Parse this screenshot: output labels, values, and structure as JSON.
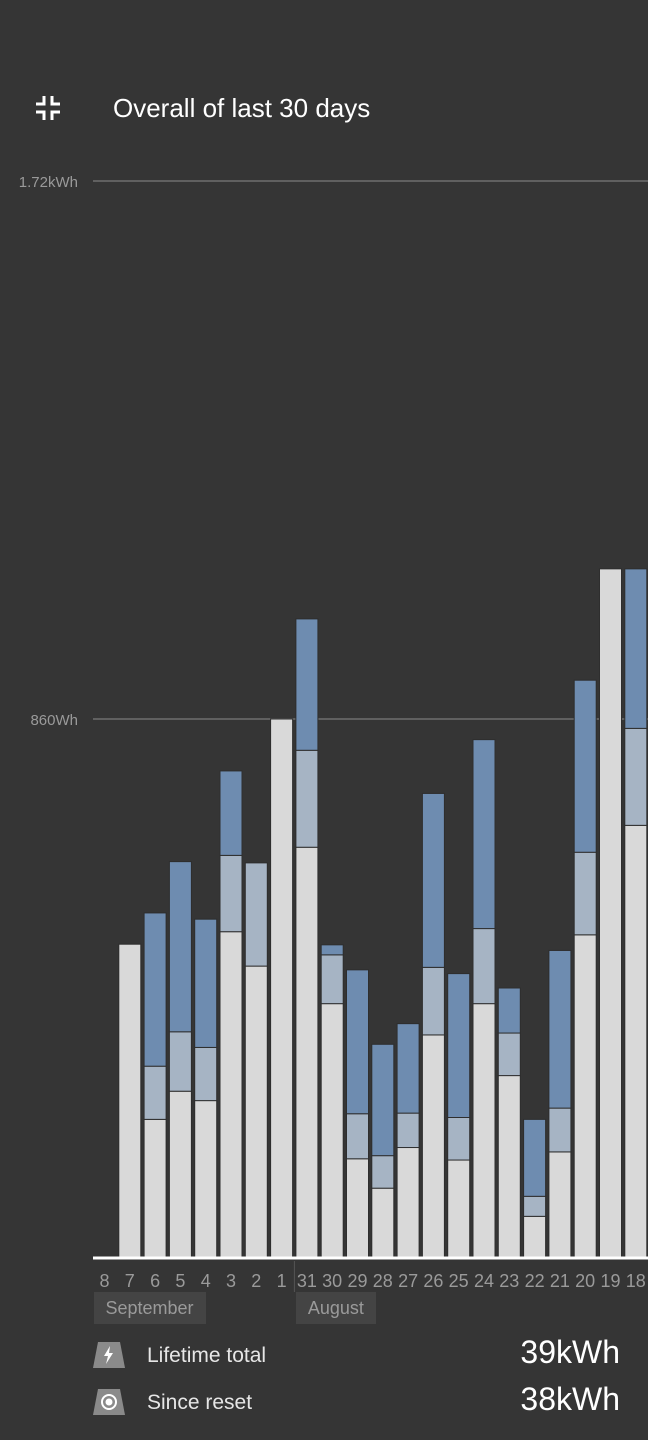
{
  "header": {
    "title": "Overall of last 30 days",
    "collapse_icon": "collapse-fullscreen-icon"
  },
  "chart_data": {
    "type": "bar",
    "stacked": true,
    "title": "Overall of last 30 days",
    "y_unit": "Wh",
    "ylim": [
      0,
      2010
    ],
    "y_ticks": [
      {
        "value": 860,
        "label": "860Wh"
      },
      {
        "value": 1720,
        "label": "1.72kWh"
      }
    ],
    "grid": true,
    "categories": [
      "8",
      "7",
      "6",
      "5",
      "4",
      "3",
      "2",
      "1",
      "31",
      "30",
      "29",
      "28",
      "27",
      "26",
      "25",
      "24",
      "23",
      "22",
      "21",
      "20",
      "19",
      "18"
    ],
    "month_labels": [
      {
        "label": "September",
        "from": "8",
        "to": "2"
      },
      {
        "label": "August",
        "from": "31",
        "to": "30"
      }
    ],
    "series_colors": [
      "#d9d9d9",
      "#a6b4c4",
      "#6e8cb0"
    ],
    "series": [
      {
        "values": [
          0,
          500,
          220,
          265,
          250,
          520,
          465,
          860,
          655,
          405,
          157,
          110,
          175,
          355,
          155,
          405,
          290,
          65,
          168,
          515,
          1100,
          690
        ]
      },
      {
        "values": [
          0,
          0,
          85,
          95,
          85,
          122,
          165,
          0,
          155,
          78,
          72,
          52,
          55,
          108,
          68,
          120,
          68,
          32,
          70,
          132,
          0,
          155
        ]
      },
      {
        "values": [
          0,
          0,
          245,
          272,
          205,
          135,
          0,
          0,
          210,
          16,
          230,
          178,
          143,
          278,
          230,
          302,
          72,
          123,
          252,
          275,
          0,
          255
        ]
      }
    ]
  },
  "stats": [
    {
      "icon": "lightning-bolt-icon",
      "label": "Lifetime total",
      "value": "39kWh"
    },
    {
      "icon": "target-reset-icon",
      "label": "Since reset",
      "value": "38kWh"
    }
  ],
  "colors": {
    "background": "#353535",
    "baseline": "#ffffff",
    "gridline": "#6e6e6e",
    "tick_text": "#9a9a9a",
    "month_bg": "#444444",
    "icon_fill": "#8a8a8a"
  }
}
